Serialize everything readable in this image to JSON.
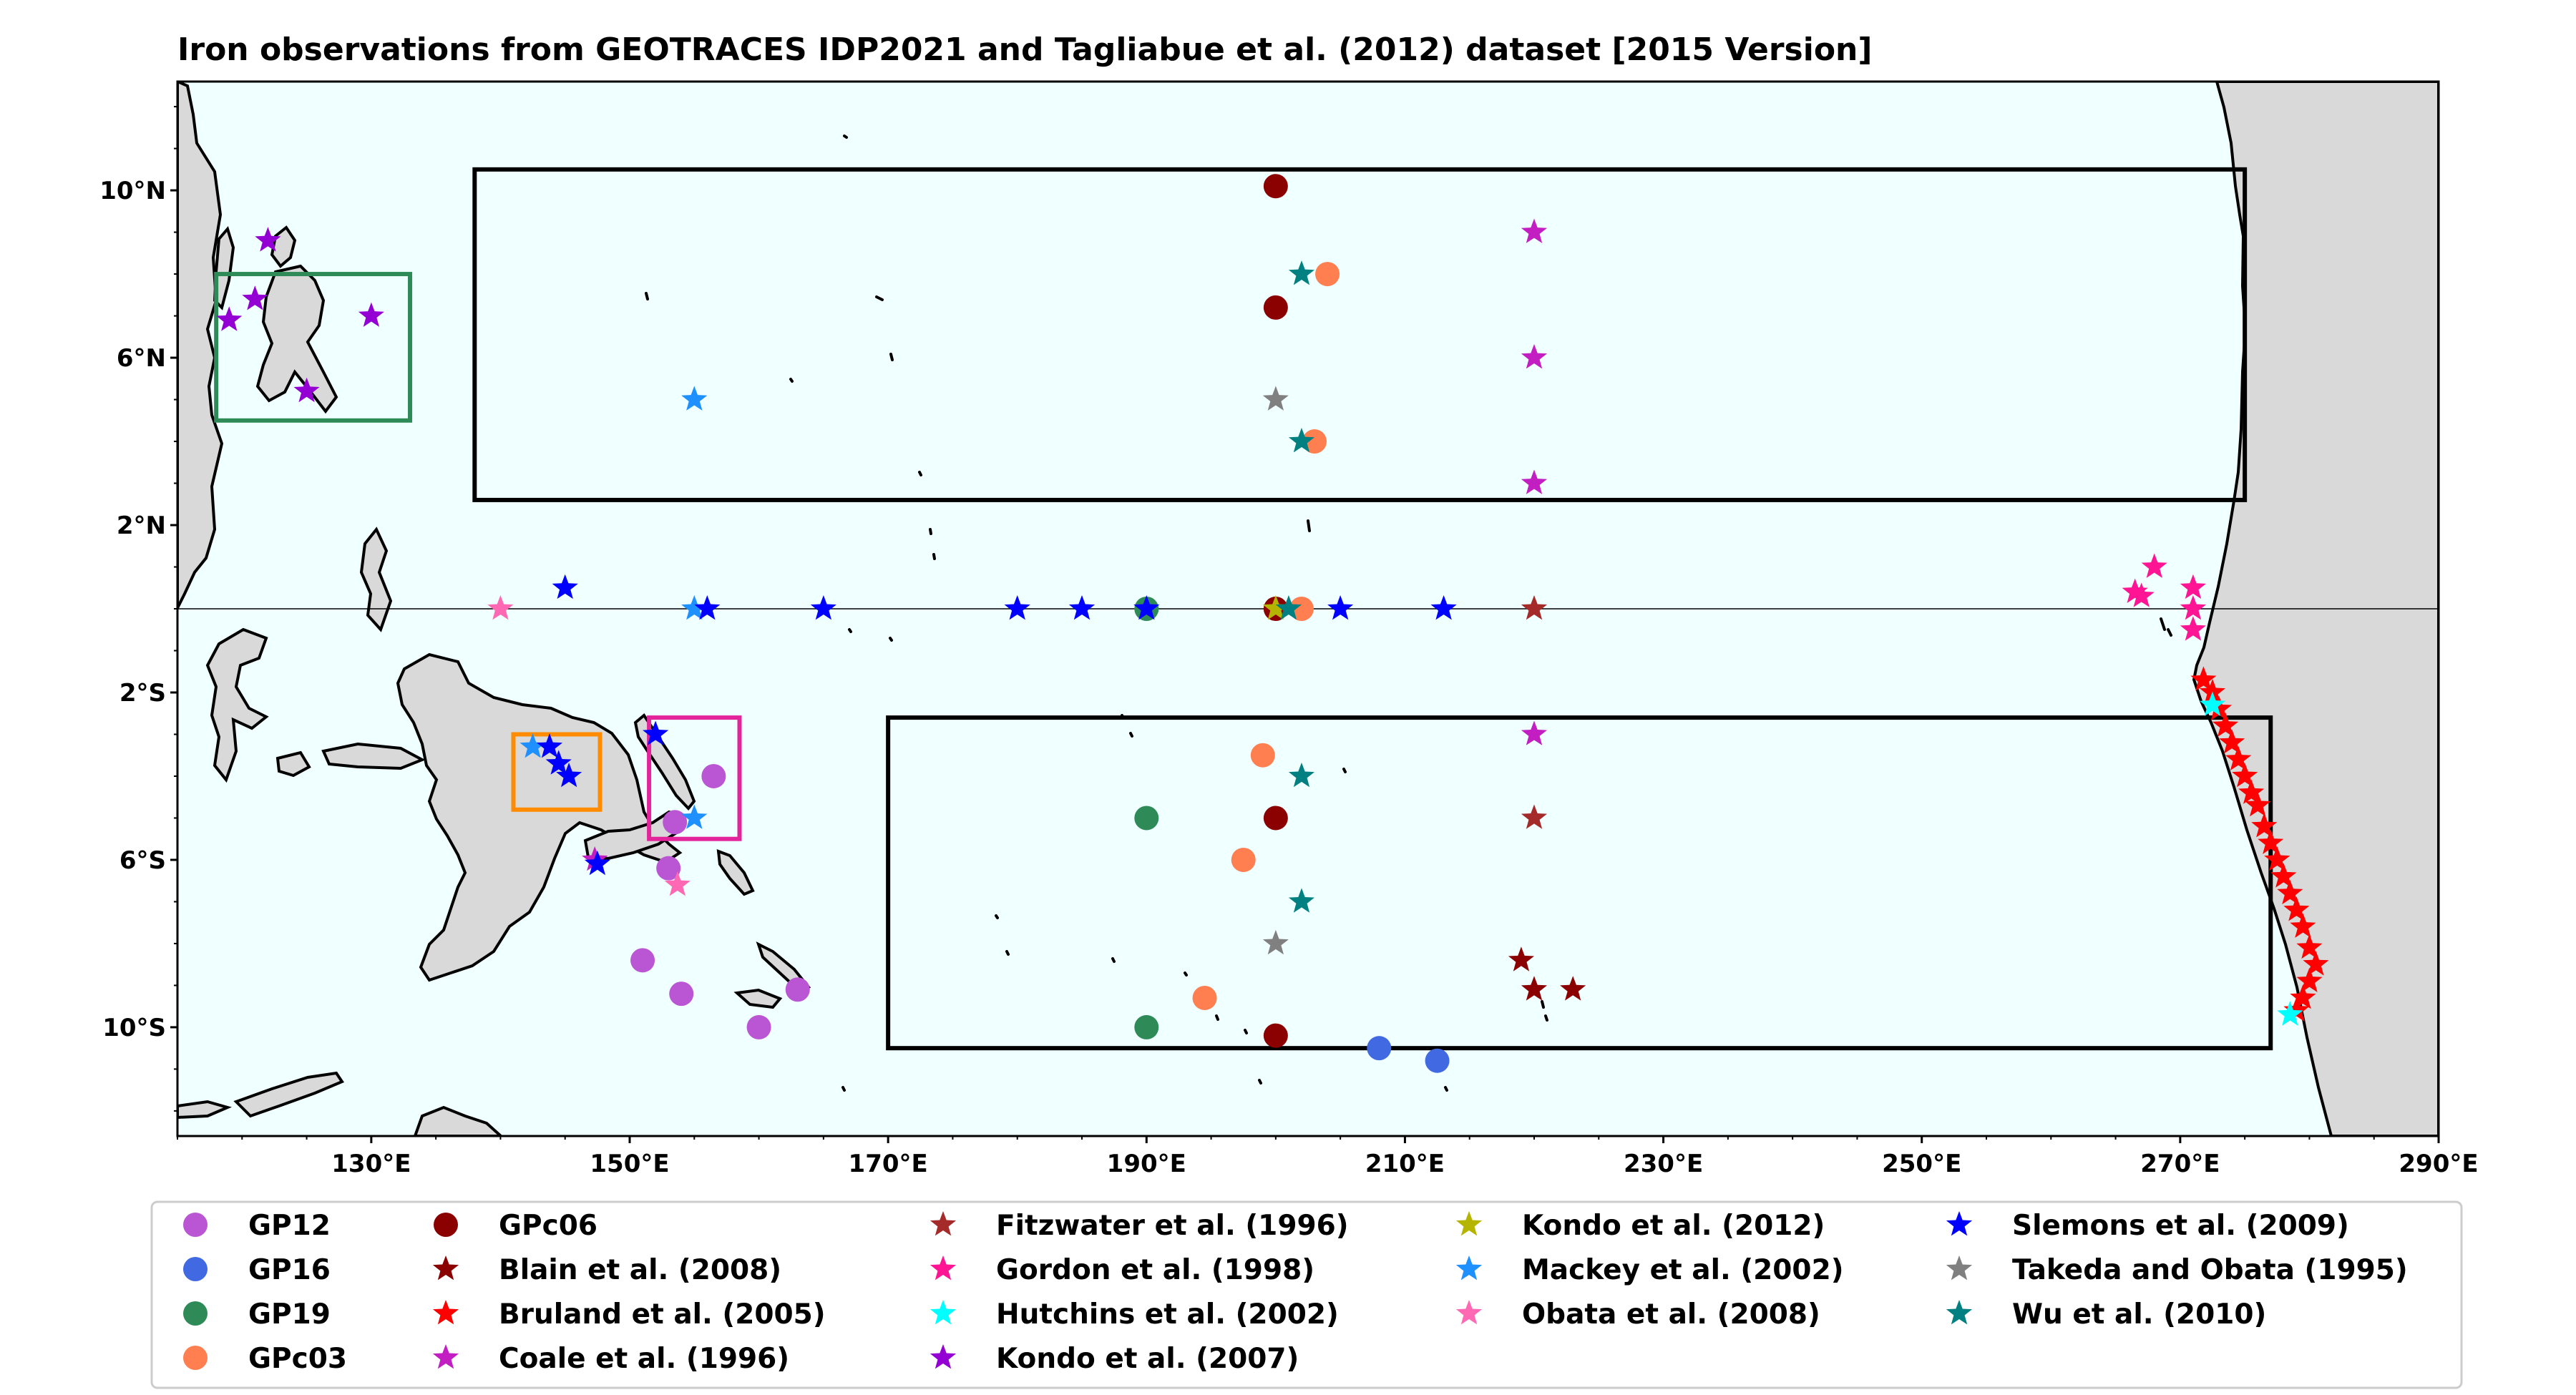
{
  "title": "Iron observations from GEOTRACES IDP2021 and Tagliabue et al. (2012) dataset [2015 Version]",
  "map": {
    "lon_range": [
      115,
      290
    ],
    "lat_range": [
      -12.6,
      12.6
    ],
    "ocean_color": "#f0ffff",
    "land_color": "#d9d9d9",
    "x_ticks": [
      {
        "lon": 130,
        "label": "130°E"
      },
      {
        "lon": 150,
        "label": "150°E"
      },
      {
        "lon": 170,
        "label": "170°E"
      },
      {
        "lon": 190,
        "label": "190°E"
      },
      {
        "lon": 210,
        "label": "210°E"
      },
      {
        "lon": 230,
        "label": "230°E"
      },
      {
        "lon": 250,
        "label": "250°E"
      },
      {
        "lon": 270,
        "label": "270°E"
      },
      {
        "lon": 290,
        "label": "290°E"
      }
    ],
    "y_ticks": [
      {
        "lat": 10,
        "label": "10°N"
      },
      {
        "lat": 6,
        "label": "6°N"
      },
      {
        "lat": 2,
        "label": "2°N"
      },
      {
        "lat": -2,
        "label": "2°S"
      },
      {
        "lat": -6,
        "label": "6°S"
      },
      {
        "lat": -10,
        "label": "10°S"
      }
    ],
    "equator_lat": 0
  },
  "regions": [
    {
      "name": "north-box",
      "lon": [
        138,
        275
      ],
      "lat": [
        2.6,
        10.5
      ],
      "color": "#000000"
    },
    {
      "name": "south-box",
      "lon": [
        170,
        277
      ],
      "lat": [
        -10.5,
        -2.6
      ],
      "color": "#000000"
    },
    {
      "name": "philippines-box",
      "lon": [
        118,
        133
      ],
      "lat": [
        4.5,
        8
      ],
      "color": "#2e8b57"
    },
    {
      "name": "png-box",
      "lon": [
        141,
        147.7
      ],
      "lat": [
        -4.8,
        -3
      ],
      "color": "#ff8c00"
    },
    {
      "name": "solomon-box",
      "lon": [
        151.5,
        158.5
      ],
      "lat": [
        -5.5,
        -2.6
      ],
      "color": "#e3249b"
    }
  ],
  "chart_data": {
    "type": "scatter",
    "series": [
      {
        "name": "GP12",
        "marker": "circle",
        "color": "#ba55d3",
        "points": [
          [
            156.5,
            -4
          ],
          [
            153.5,
            -5.1
          ],
          [
            153,
            -6.2
          ],
          [
            151,
            -8.4
          ],
          [
            154,
            -9.2
          ],
          [
            160,
            -10
          ],
          [
            163,
            -9.1
          ]
        ]
      },
      {
        "name": "GP16",
        "marker": "circle",
        "color": "#4169e1",
        "points": [
          [
            208,
            -10.5
          ],
          [
            212.5,
            -10.8
          ]
        ]
      },
      {
        "name": "GP19",
        "marker": "circle",
        "color": "#2e8b57",
        "points": [
          [
            190,
            0
          ],
          [
            190,
            -5
          ],
          [
            190,
            -10
          ]
        ]
      },
      {
        "name": "GPc03",
        "marker": "circle",
        "color": "#ff7f50",
        "points": [
          [
            204,
            8
          ],
          [
            203,
            4
          ],
          [
            202,
            0
          ],
          [
            199,
            -3.5
          ],
          [
            197.5,
            -6
          ],
          [
            194.5,
            -9.3
          ]
        ]
      },
      {
        "name": "GPc06",
        "marker": "circle",
        "color": "#8b0000",
        "points": [
          [
            200,
            10.1
          ],
          [
            200,
            7.2
          ],
          [
            200,
            0
          ],
          [
            200,
            -5
          ],
          [
            200,
            -10.2
          ]
        ]
      },
      {
        "name": "Blain et al. (2008)",
        "marker": "star",
        "color": "#8b0000",
        "points": [
          [
            219,
            -8.4
          ],
          [
            220,
            -9.1
          ],
          [
            223,
            -9.1
          ]
        ]
      },
      {
        "name": "Bruland et al. (2005)",
        "marker": "star",
        "color": "#ff0000",
        "points": [
          [
            271.8,
            -1.7
          ],
          [
            272.5,
            -2
          ],
          [
            273,
            -2.4
          ],
          [
            273.5,
            -2.8
          ],
          [
            274,
            -3.2
          ],
          [
            274.5,
            -3.6
          ],
          [
            275,
            -4
          ],
          [
            275.5,
            -4.4
          ],
          [
            276,
            -4.7
          ],
          [
            276.5,
            -5.2
          ],
          [
            277,
            -5.6
          ],
          [
            277.5,
            -6
          ],
          [
            278,
            -6.4
          ],
          [
            278.5,
            -6.8
          ],
          [
            279,
            -7.2
          ],
          [
            279.5,
            -7.6
          ],
          [
            280,
            -8.1
          ],
          [
            280.5,
            -8.5
          ],
          [
            280,
            -8.9
          ],
          [
            279.5,
            -9.3
          ],
          [
            279,
            -9.6
          ]
        ]
      },
      {
        "name": "Coale et al. (1996)",
        "marker": "star",
        "color": "#c21ec2",
        "points": [
          [
            220,
            9
          ],
          [
            220,
            6
          ],
          [
            220,
            3
          ],
          [
            220,
            -3
          ],
          [
            147.3,
            -6
          ]
        ]
      },
      {
        "name": "Fitzwater et al. (1996)",
        "marker": "star",
        "color": "#a52a2a",
        "points": [
          [
            220,
            0
          ],
          [
            220,
            -5
          ]
        ]
      },
      {
        "name": "Gordon et al. (1998)",
        "marker": "star",
        "color": "#ff1493",
        "points": [
          [
            266.5,
            0.4
          ],
          [
            267,
            0.3
          ],
          [
            268,
            1
          ],
          [
            271,
            0.5
          ],
          [
            271,
            0
          ],
          [
            271,
            -0.5
          ]
        ]
      },
      {
        "name": "Hutchins et al. (2002)",
        "marker": "star",
        "color": "#00ffff",
        "points": [
          [
            272.5,
            -2.3
          ],
          [
            278.5,
            -9.7
          ]
        ]
      },
      {
        "name": "Kondo et al. (2007)",
        "marker": "star",
        "color": "#9400d3",
        "points": [
          [
            119,
            6.9
          ],
          [
            121,
            7.4
          ],
          [
            122,
            8.8
          ],
          [
            125,
            5.2
          ],
          [
            130,
            7
          ]
        ]
      },
      {
        "name": "Kondo et al. (2012)",
        "marker": "star",
        "color": "#b5b500",
        "points": [
          [
            200,
            0
          ]
        ]
      },
      {
        "name": "Mackey et al. (2002)",
        "marker": "star",
        "color": "#1e90ff",
        "points": [
          [
            155,
            5
          ],
          [
            155,
            0
          ],
          [
            155,
            -5
          ],
          [
            142.5,
            -3.3
          ]
        ]
      },
      {
        "name": "Obata et al. (2008)",
        "marker": "star",
        "color": "#ff69b4",
        "points": [
          [
            140,
            0
          ],
          [
            153.7,
            -6.6
          ]
        ]
      },
      {
        "name": "Slemons et al. (2009)",
        "marker": "star",
        "color": "#0000ff",
        "points": [
          [
            145,
            0.5
          ],
          [
            156,
            0
          ],
          [
            165,
            0
          ],
          [
            180,
            0
          ],
          [
            185,
            0
          ],
          [
            190,
            0
          ],
          [
            205,
            0
          ],
          [
            213,
            0
          ],
          [
            152,
            -3
          ],
          [
            143.8,
            -3.3
          ],
          [
            144.5,
            -3.7
          ],
          [
            145.3,
            -4
          ],
          [
            147.5,
            -6.1
          ]
        ]
      },
      {
        "name": "Takeda and Obata (1995)",
        "marker": "star",
        "color": "#808080",
        "points": [
          [
            200,
            5
          ],
          [
            200,
            -8
          ]
        ]
      },
      {
        "name": "Wu et al. (2010)",
        "marker": "star",
        "color": "#008080",
        "points": [
          [
            202,
            8
          ],
          [
            202,
            4
          ],
          [
            201,
            0
          ],
          [
            202,
            -4
          ],
          [
            202,
            -7
          ]
        ]
      }
    ]
  },
  "legend": {
    "columns": [
      [
        "GP12",
        "GP16",
        "GP19",
        "GPc03"
      ],
      [
        "GPc06",
        "Blain et al. (2008)",
        "Bruland et al. (2005)",
        "Coale et al. (1996)"
      ],
      [
        "Fitzwater et al. (1996)",
        "Gordon et al. (1998)",
        "Hutchins et al. (2002)",
        "Kondo et al. (2007)"
      ],
      [
        "Kondo et al. (2012)",
        "Mackey et al. (2002)",
        "Obata et al. (2008)"
      ],
      [
        "Slemons et al. (2009)",
        "Takeda and Obata (1995)",
        "Wu et al. (2010)"
      ]
    ]
  }
}
